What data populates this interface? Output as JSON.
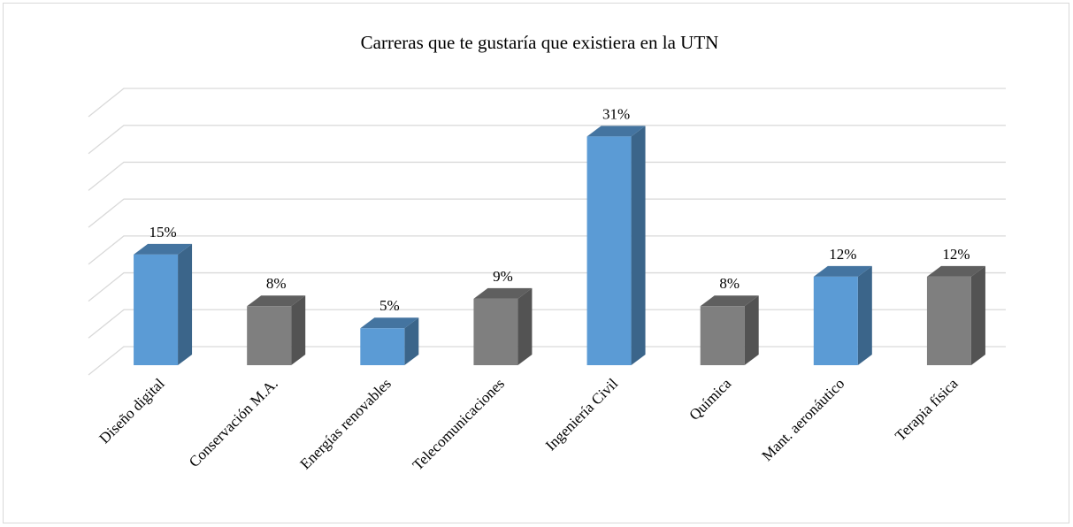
{
  "chart_data": {
    "type": "bar3d",
    "title": "Carreras que te gustaría que existiera en la UTN",
    "categories": [
      "Diseño digital",
      "Conservación M.A.",
      "Energías renovables",
      "Telecomunicaciones",
      "Ingeniería Civil",
      "Química",
      "Mant. aeronáutico",
      "Terapia física"
    ],
    "values": [
      15,
      8,
      5,
      9,
      31,
      8,
      12,
      12
    ],
    "value_labels": [
      "15%",
      "8%",
      "5%",
      "9%",
      "31%",
      "8%",
      "12%",
      "12%"
    ],
    "colors": [
      "#5b9bd5",
      "#7f7f7f",
      "#5b9bd5",
      "#7f7f7f",
      "#5b9bd5",
      "#7f7f7f",
      "#5b9bd5",
      "#7f7f7f"
    ],
    "ylim": [
      0,
      35
    ],
    "yticks": [
      0,
      5,
      10,
      15,
      20,
      25,
      30,
      35
    ],
    "grid": true,
    "tick_labels": false
  }
}
